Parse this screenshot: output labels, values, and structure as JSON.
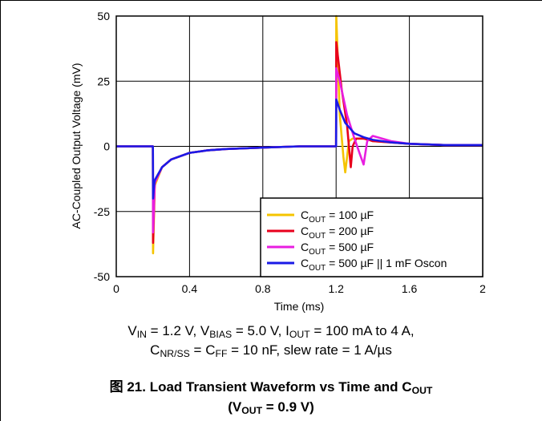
{
  "chart_data": {
    "type": "line",
    "xlabel": "Time (ms)",
    "ylabel": "AC-Coupled Output Voltage (mV)",
    "xlim": [
      0,
      2
    ],
    "ylim": [
      -50,
      50
    ],
    "x_ticks": [
      "0",
      "0.4",
      "0.8",
      "1.2",
      "1.6",
      "2"
    ],
    "y_ticks": [
      "50",
      "25",
      "0",
      "-25",
      "-50"
    ],
    "grid": true,
    "legend_position": "bottom-right",
    "series": [
      {
        "name": "COUT = 100 µF",
        "label_main": "C",
        "label_sub": "OUT",
        "label_rest": " = 100 µF",
        "color": "#F5C400",
        "x": [
          0,
          0.2,
          0.201,
          0.21,
          0.25,
          0.3,
          0.4,
          0.5,
          0.6,
          0.8,
          1.0,
          1.2,
          1.201,
          1.22,
          1.24,
          1.25,
          1.27,
          1.29,
          1.31,
          1.33,
          1.35,
          1.38,
          1.4,
          1.6,
          1.8,
          2.0
        ],
        "y": [
          0,
          0,
          -41,
          -15,
          -8,
          -5,
          -2.5,
          -1.5,
          -1,
          -0.5,
          0,
          0,
          50,
          12,
          -4,
          -10,
          2,
          3,
          3,
          3,
          3,
          2.5,
          2,
          1,
          0.5,
          0.5
        ]
      },
      {
        "name": "COUT = 200 µF",
        "label_main": "C",
        "label_sub": "OUT",
        "label_rest": " = 200 µF",
        "color": "#E8001C",
        "x": [
          0,
          0.2,
          0.201,
          0.21,
          0.25,
          0.3,
          0.4,
          0.5,
          0.6,
          0.8,
          1.0,
          1.2,
          1.201,
          1.23,
          1.26,
          1.28,
          1.29,
          1.31,
          1.33,
          1.35,
          1.38,
          1.4,
          1.6,
          1.8,
          2.0
        ],
        "y": [
          0,
          0,
          -37,
          -14,
          -8,
          -5,
          -2.5,
          -1.5,
          -1,
          -0.5,
          0,
          0,
          40,
          22,
          8,
          -8,
          0,
          3,
          3,
          3,
          2.5,
          2,
          1,
          0.5,
          0.5
        ]
      },
      {
        "name": "COUT = 500 µF",
        "label_main": "C",
        "label_sub": "OUT",
        "label_rest": " = 500 µF",
        "color": "#E81EE0",
        "x": [
          0,
          0.2,
          0.201,
          0.21,
          0.25,
          0.3,
          0.4,
          0.5,
          0.6,
          0.8,
          1.0,
          1.2,
          1.201,
          1.22,
          1.26,
          1.3,
          1.33,
          1.35,
          1.37,
          1.4,
          1.5,
          1.6,
          1.8,
          2.0
        ],
        "y": [
          0,
          0,
          -33,
          -14,
          -8,
          -5,
          -2.5,
          -1.5,
          -1,
          -0.5,
          0,
          0,
          30,
          25,
          12,
          3,
          -3,
          -7,
          2,
          4,
          2,
          1,
          0.5,
          0.5
        ]
      },
      {
        "name": "COUT = 500 µF || 1 mF Oscon",
        "label_main": "C",
        "label_sub": "OUT",
        "label_rest": " = 500 µF || 1 mF Oscon",
        "color": "#1A1AE6",
        "x": [
          0,
          0.2,
          0.201,
          0.205,
          0.21,
          0.25,
          0.3,
          0.4,
          0.5,
          0.6,
          0.8,
          1.0,
          1.2,
          1.201,
          1.22,
          1.25,
          1.3,
          1.35,
          1.4,
          1.5,
          1.6,
          1.8,
          2.0
        ],
        "y": [
          0,
          0,
          -20,
          -16,
          -13,
          -8,
          -5,
          -2.5,
          -1.5,
          -1,
          -0.5,
          0,
          0,
          18,
          14,
          9,
          5,
          3.5,
          2.5,
          1.5,
          1,
          0.5,
          0.5
        ]
      }
    ]
  },
  "conditions_line1": {
    "v_in": "V",
    "v_in_sub": "IN",
    "v_in_val": " = 1.2 V, ",
    "v_bias": "V",
    "v_bias_sub": "BIAS",
    "v_bias_val": " = 5.0 V, ",
    "i_out": "I",
    "i_out_sub": "OUT",
    "i_out_val": " = 100 mA to 4 A,"
  },
  "conditions_line2": {
    "c_nr": "C",
    "c_nr_sub": "NR/SS",
    "mid": " = C",
    "c_ff_sub": "FF",
    "rest": " = 10 nF, slew rate = 1 A/µs"
  },
  "figure_caption": {
    "line1_main": "图 21. Load Transient Waveform vs Time and C",
    "line1_sub": "OUT",
    "line2_open": "(V",
    "line2_sub": "OUT",
    "line2_rest": " = 0.9 V)"
  }
}
